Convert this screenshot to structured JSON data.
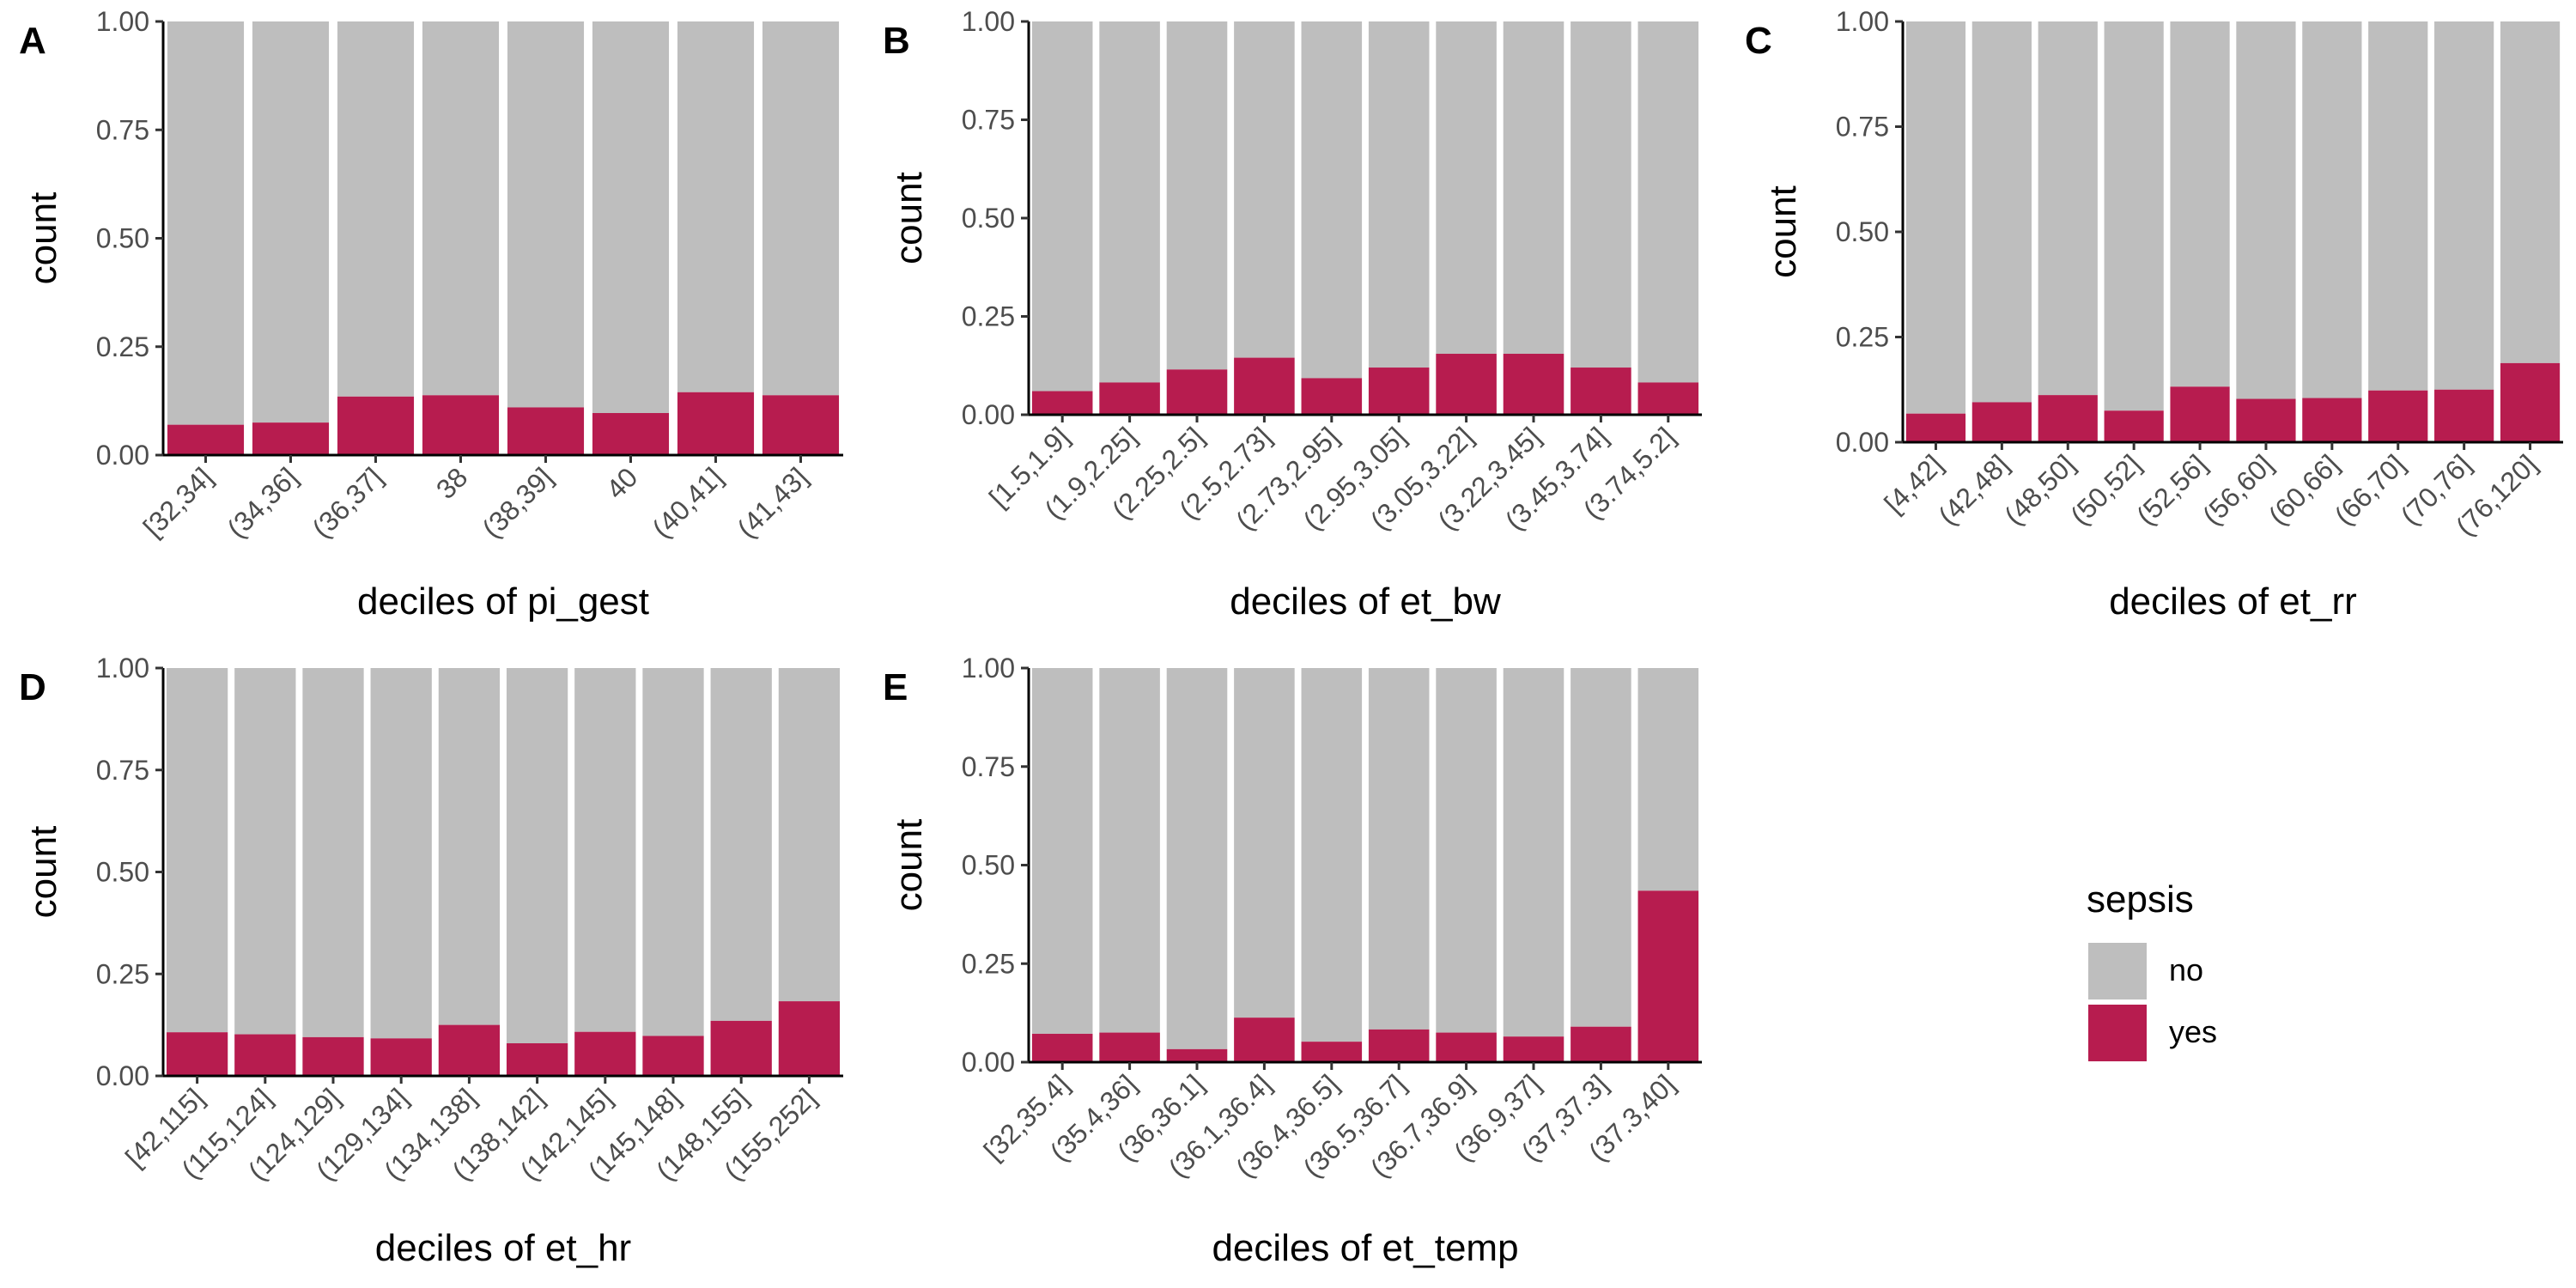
{
  "colors": {
    "no": "#bebebe",
    "yes": "#b71c4f",
    "axis": "#000000",
    "tick_text": "#4d4d4d"
  },
  "legend": {
    "title": "sepsis",
    "items": [
      {
        "label": "no",
        "color": "#bebebe"
      },
      {
        "label": "yes",
        "color": "#b71c4f"
      }
    ]
  },
  "chart_data": [
    {
      "panel": "A",
      "type": "bar",
      "stacked": true,
      "xlabel": "deciles of pi_gest",
      "ylabel": "count",
      "ylim": [
        0,
        1
      ],
      "yticks": [
        "0.00",
        "0.25",
        "0.50",
        "0.75",
        "1.00"
      ],
      "categories": [
        "[32,34]",
        "(34,36]",
        "(36,37]",
        "38",
        "(38,39]",
        "40",
        "(40,41]",
        "(41,43]"
      ],
      "series": [
        {
          "name": "yes",
          "values": [
            0.07,
            0.075,
            0.135,
            0.138,
            0.11,
            0.097,
            0.145,
            0.138
          ]
        },
        {
          "name": "no",
          "values": [
            0.93,
            0.925,
            0.865,
            0.862,
            0.89,
            0.903,
            0.855,
            0.862
          ]
        }
      ]
    },
    {
      "panel": "B",
      "type": "bar",
      "stacked": true,
      "xlabel": "deciles of et_bw",
      "ylabel": "count",
      "ylim": [
        0,
        1
      ],
      "yticks": [
        "0.00",
        "0.25",
        "0.50",
        "0.75",
        "1.00"
      ],
      "categories": [
        "[1.5,1.9]",
        "(1.9,2.25]",
        "(2.25,2.5]",
        "(2.5,2.73]",
        "(2.73,2.95]",
        "(2.95,3.05]",
        "(3.05,3.22]",
        "(3.22,3.45]",
        "(3.45,3.74]",
        "(3.74,5.2]"
      ],
      "series": [
        {
          "name": "yes",
          "values": [
            0.06,
            0.082,
            0.115,
            0.145,
            0.093,
            0.12,
            0.155,
            0.155,
            0.12,
            0.082
          ]
        },
        {
          "name": "no",
          "values": [
            0.94,
            0.918,
            0.885,
            0.855,
            0.907,
            0.88,
            0.845,
            0.845,
            0.88,
            0.918
          ]
        }
      ]
    },
    {
      "panel": "C",
      "type": "bar",
      "stacked": true,
      "xlabel": "deciles of et_rr",
      "ylabel": "count",
      "ylim": [
        0,
        1
      ],
      "yticks": [
        "0.00",
        "0.25",
        "0.50",
        "0.75",
        "1.00"
      ],
      "categories": [
        "[4,42]",
        "(42,48]",
        "(48,50]",
        "(50,52]",
        "(52,56]",
        "(56,60]",
        "(60,66]",
        "(66,70]",
        "(70,76]",
        "(76,120]"
      ],
      "series": [
        {
          "name": "yes",
          "values": [
            0.068,
            0.095,
            0.112,
            0.075,
            0.132,
            0.103,
            0.105,
            0.123,
            0.125,
            0.188
          ]
        },
        {
          "name": "no",
          "values": [
            0.932,
            0.905,
            0.888,
            0.925,
            0.868,
            0.897,
            0.895,
            0.877,
            0.875,
            0.812
          ]
        }
      ]
    },
    {
      "panel": "D",
      "type": "bar",
      "stacked": true,
      "xlabel": "deciles of et_hr",
      "ylabel": "count",
      "ylim": [
        0,
        1
      ],
      "yticks": [
        "0.00",
        "0.25",
        "0.50",
        "0.75",
        "1.00"
      ],
      "categories": [
        "[42,115]",
        "(115,124]",
        "(124,129]",
        "(129,134]",
        "(134,138]",
        "(138,142]",
        "(142,145]",
        "(145,148]",
        "(148,155]",
        "(155,252]"
      ],
      "series": [
        {
          "name": "yes",
          "values": [
            0.107,
            0.102,
            0.095,
            0.092,
            0.125,
            0.08,
            0.108,
            0.098,
            0.135,
            0.183
          ]
        },
        {
          "name": "no",
          "values": [
            0.893,
            0.898,
            0.905,
            0.908,
            0.875,
            0.92,
            0.892,
            0.902,
            0.865,
            0.817
          ]
        }
      ]
    },
    {
      "panel": "E",
      "type": "bar",
      "stacked": true,
      "xlabel": "deciles of et_temp",
      "ylabel": "count",
      "ylim": [
        0,
        1
      ],
      "yticks": [
        "0.00",
        "0.25",
        "0.50",
        "0.75",
        "1.00"
      ],
      "categories": [
        "[32,35.4]",
        "(35.4,36]",
        "(36,36.1]",
        "(36.1,36.4]",
        "(36.4,36.5]",
        "(36.5,36.7]",
        "(36.7,36.9]",
        "(36.9,37]",
        "(37,37.3]",
        "(37.3,40]"
      ],
      "series": [
        {
          "name": "yes",
          "values": [
            0.072,
            0.075,
            0.033,
            0.113,
            0.052,
            0.083,
            0.075,
            0.065,
            0.09,
            0.435
          ]
        },
        {
          "name": "no",
          "values": [
            0.928,
            0.925,
            0.967,
            0.887,
            0.948,
            0.917,
            0.925,
            0.935,
            0.91,
            0.565
          ]
        }
      ]
    }
  ]
}
